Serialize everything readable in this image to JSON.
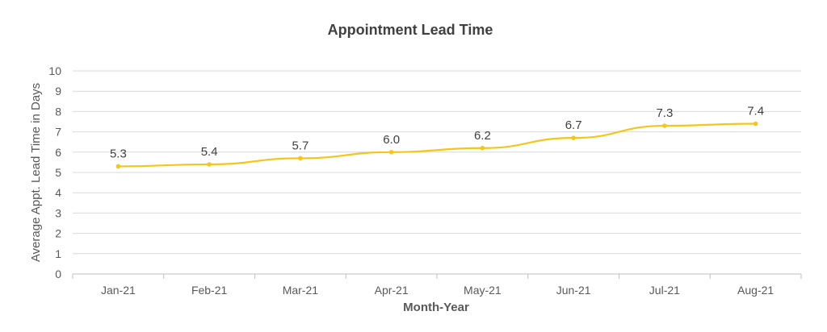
{
  "chart_data": {
    "type": "line",
    "title": "Appointment Lead Time",
    "xlabel": "Month-Year",
    "ylabel": "Average Appt. Lead Time in Days",
    "categories": [
      "Jan-21",
      "Feb-21",
      "Mar-21",
      "Apr-21",
      "May-21",
      "Jun-21",
      "Jul-21",
      "Aug-21"
    ],
    "series": [
      {
        "values": [
          5.3,
          5.4,
          5.7,
          6.0,
          6.2,
          6.7,
          7.3,
          7.4
        ],
        "labels": [
          "5.3",
          "5.4",
          "5.7",
          "6.0",
          "6.2",
          "6.7",
          "7.3",
          "7.4"
        ],
        "color": "#f5c518"
      }
    ],
    "ylim": [
      0,
      10
    ],
    "yticks": [
      "0",
      "1",
      "2",
      "3",
      "4",
      "5",
      "6",
      "7",
      "8",
      "9",
      "10"
    ],
    "grid": true,
    "legend": "none"
  }
}
